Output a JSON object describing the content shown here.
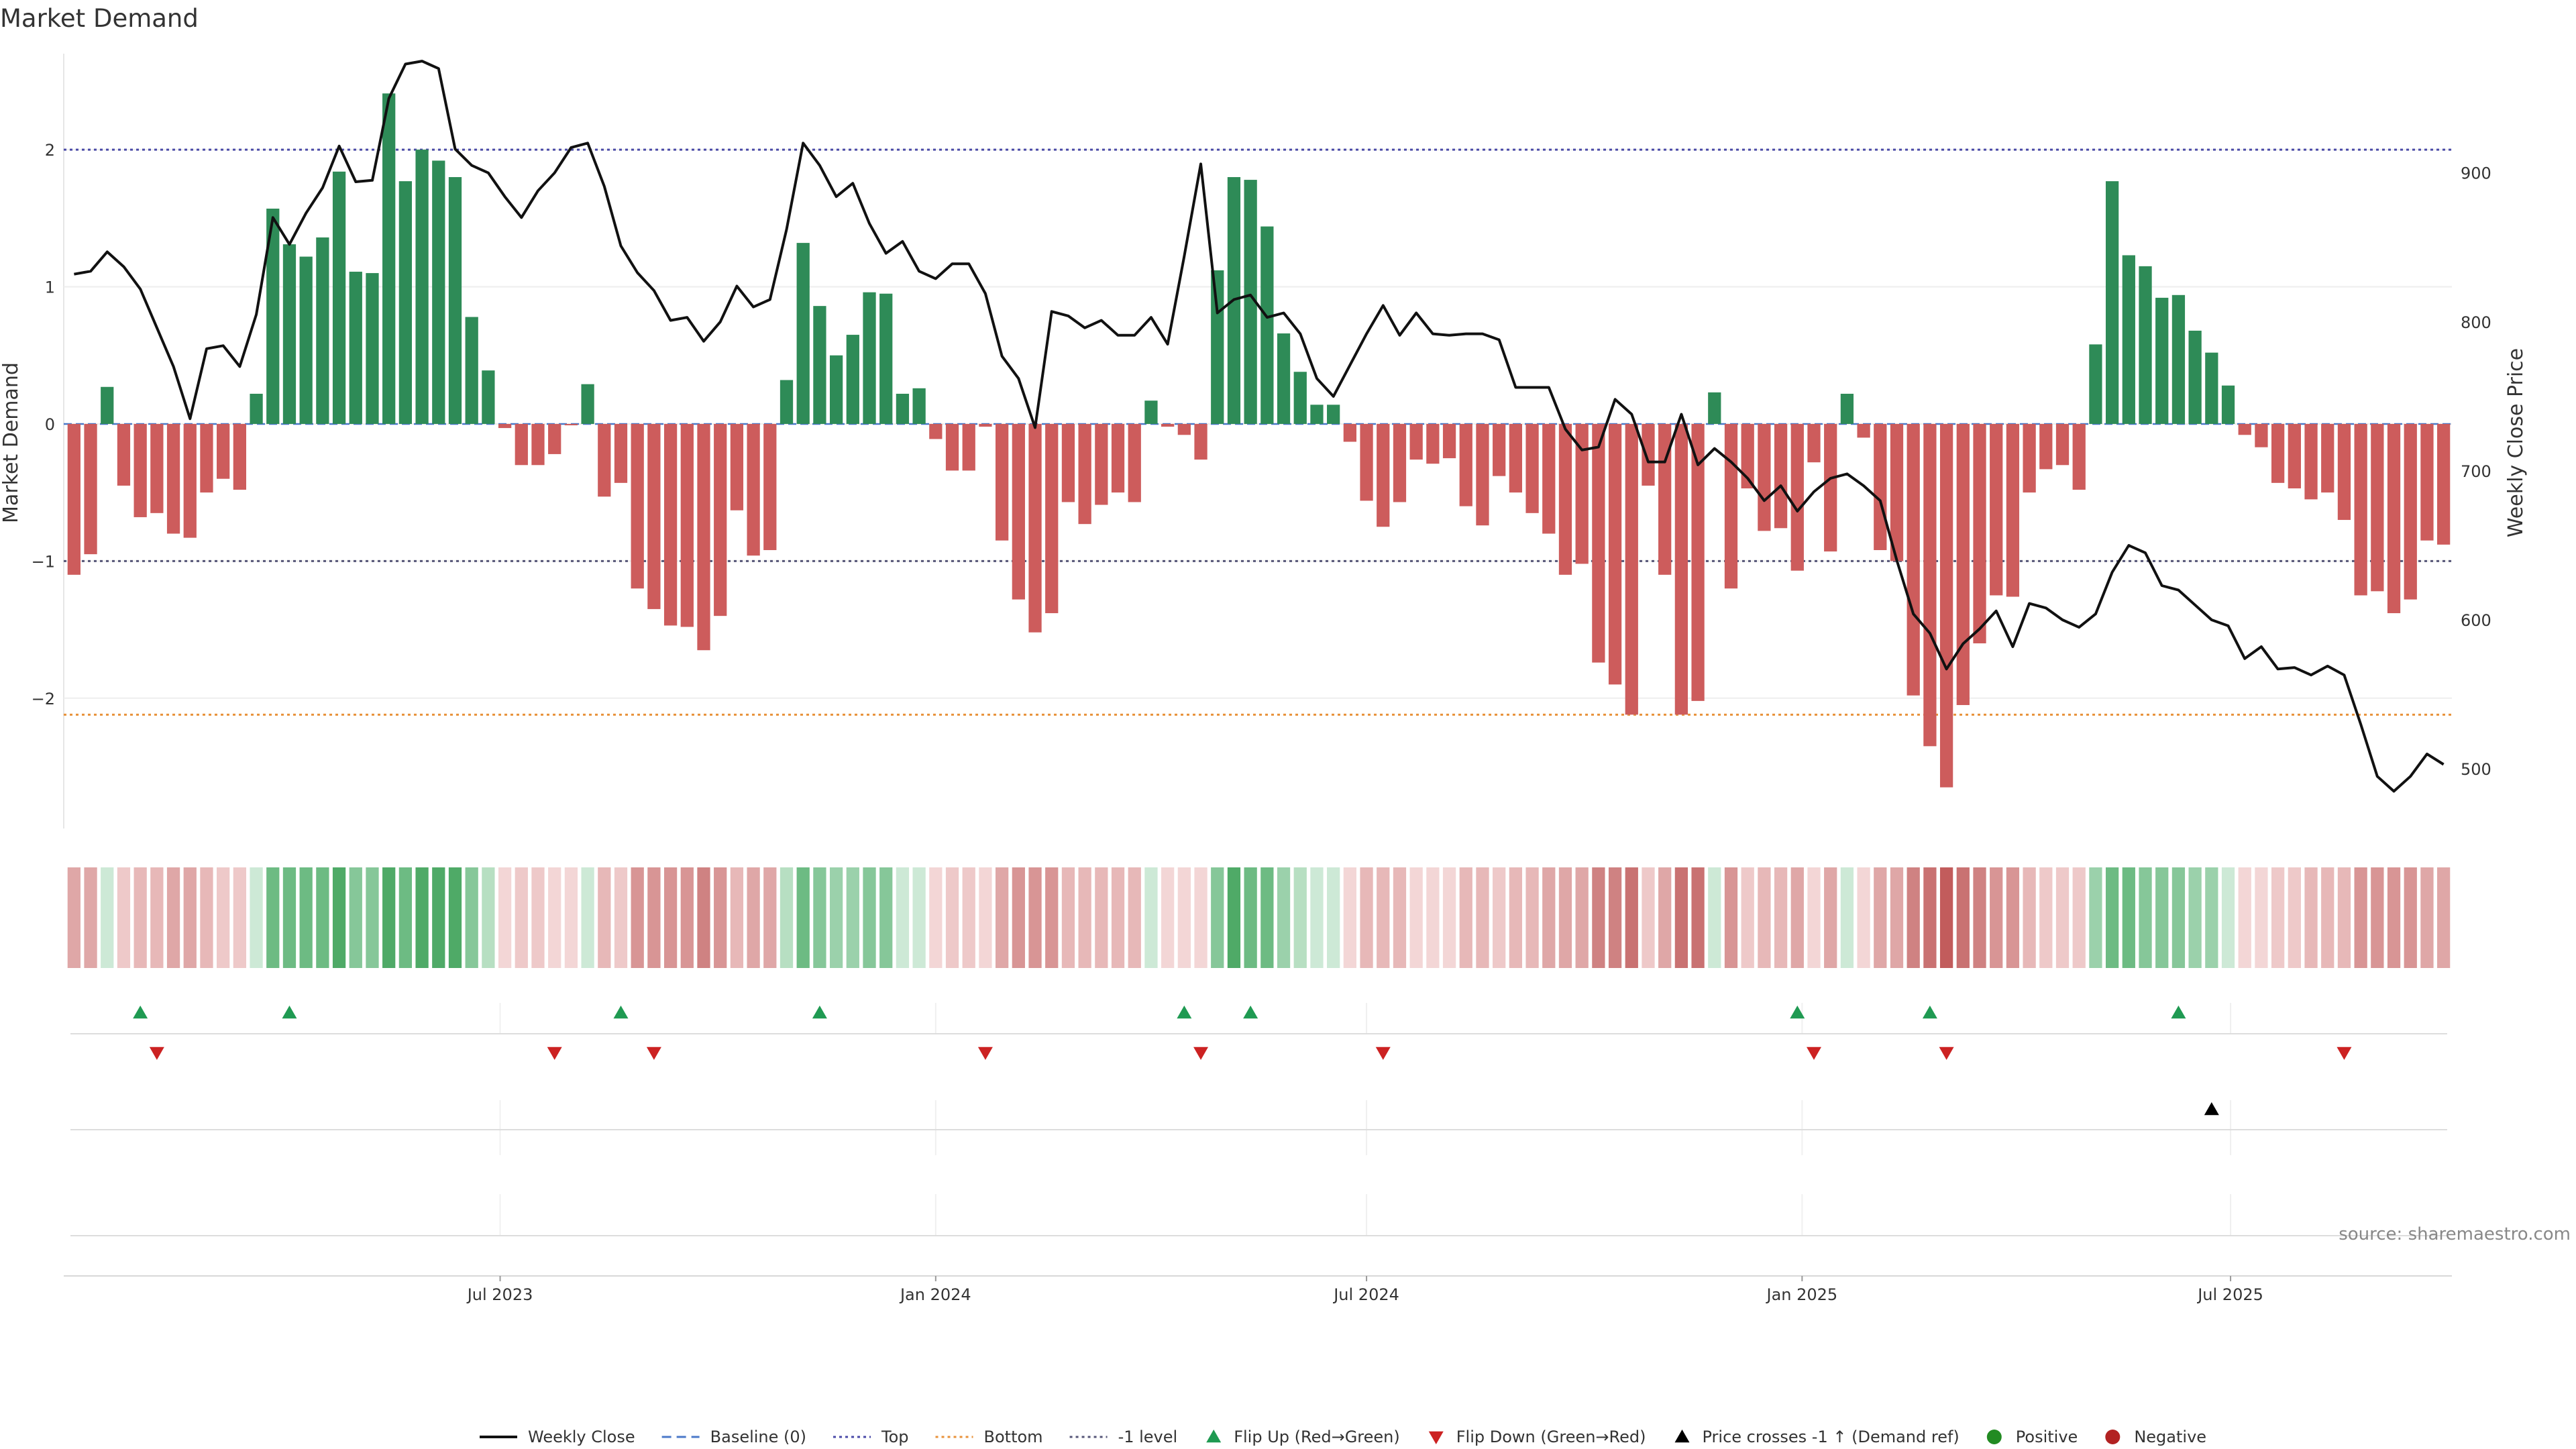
{
  "chart_data": {
    "type": "bar",
    "title": "Market Demand",
    "ylabel": "Market Demand",
    "y2label": "Weekly Close Price",
    "ylim": [
      -2.95,
      2.7
    ],
    "y2lim": [
      460,
      980
    ],
    "yticks": [
      2,
      1,
      0,
      -1,
      -2
    ],
    "ytick_labels": [
      "2",
      "1",
      "0",
      "−1",
      "−2"
    ],
    "y2ticks": [
      900,
      800,
      700,
      600,
      500
    ],
    "y2tick_labels": [
      "900",
      "800",
      "700",
      "600",
      "500"
    ],
    "x_start": "2023-01-02",
    "x_end": "2025-10-06",
    "xticks": [
      {
        "date": "2023-07-01",
        "label": "Jul 2023"
      },
      {
        "date": "2024-01-01",
        "label": "Jan 2024"
      },
      {
        "date": "2024-07-01",
        "label": "Jul 2024"
      },
      {
        "date": "2025-01-01",
        "label": "Jan 2025"
      },
      {
        "date": "2025-07-01",
        "label": "Jul 2025"
      }
    ],
    "reference_lines": [
      {
        "name": "Top",
        "value": 2,
        "color": "#4a4aa8"
      },
      {
        "name": "-1 level",
        "value": -1,
        "color": "#555577"
      },
      {
        "name": "Bottom",
        "value": -2.12,
        "color": "#e8923a"
      }
    ],
    "positive_color": "#2e8b57",
    "negative_color": "#cd5c5c",
    "line_color": "#111111",
    "demand": [
      -1.1,
      -0.95,
      0.27,
      -0.45,
      -0.68,
      -0.65,
      -0.8,
      -0.83,
      -0.5,
      -0.4,
      -0.48,
      0.22,
      1.57,
      1.31,
      1.22,
      1.36,
      1.84,
      1.11,
      1.1,
      2.41,
      1.77,
      2.0,
      1.92,
      1.8,
      0.78,
      0.39,
      -0.03,
      -0.3,
      -0.3,
      -0.22,
      -0.01,
      0.29,
      -0.53,
      -0.43,
      -1.2,
      -1.35,
      -1.47,
      -1.48,
      -1.65,
      -1.4,
      -0.63,
      -0.96,
      -0.92,
      0.32,
      1.32,
      0.86,
      0.5,
      0.65,
      0.96,
      0.95,
      0.22,
      0.26,
      -0.11,
      -0.34,
      -0.34,
      -0.02,
      -0.85,
      -1.28,
      -1.52,
      -1.38,
      -0.57,
      -0.73,
      -0.59,
      -0.5,
      -0.57,
      0.17,
      -0.02,
      -0.08,
      -0.26,
      1.12,
      1.8,
      1.78,
      1.44,
      0.66,
      0.38,
      0.14,
      0.14,
      -0.13,
      -0.56,
      -0.75,
      -0.57,
      -0.26,
      -0.29,
      -0.25,
      -0.6,
      -0.74,
      -0.38,
      -0.5,
      -0.65,
      -0.8,
      -1.1,
      -1.02,
      -1.74,
      -1.9,
      -2.12,
      -0.45,
      -1.1,
      -2.12,
      -2.02,
      0.23,
      -1.2,
      -0.47,
      -0.78,
      -0.76,
      -1.07,
      -0.28,
      -0.93,
      0.22,
      -0.1,
      -0.92,
      -1.0,
      -1.98,
      -2.35,
      -2.65,
      -2.05,
      -1.6,
      -1.25,
      -1.26,
      -0.5,
      -0.33,
      -0.3,
      -0.48,
      0.58,
      1.77,
      1.23,
      1.15,
      0.92,
      0.94,
      0.68,
      0.52,
      0.28,
      -0.08,
      -0.17,
      -0.43,
      -0.47,
      -0.55,
      -0.5,
      -0.7,
      -1.25,
      -1.22,
      -1.38,
      -1.28,
      -0.85,
      -0.88
    ],
    "close": [
      832,
      834,
      847,
      837,
      822,
      796,
      770,
      735,
      782,
      784,
      770,
      805,
      870,
      852,
      873,
      890,
      918,
      894,
      895,
      950,
      973,
      975,
      970,
      916,
      905,
      900,
      884,
      870,
      888,
      900,
      917,
      920,
      891,
      851,
      833,
      821,
      801,
      803,
      787,
      800,
      824,
      810,
      815,
      862,
      920,
      905,
      884,
      893,
      866,
      846,
      854,
      834,
      829,
      839,
      839,
      819,
      777,
      762,
      729,
      807,
      804,
      796,
      801,
      791,
      791,
      803,
      785,
      844,
      906,
      806,
      815,
      818,
      803,
      806,
      792,
      762,
      750,
      771,
      792,
      811,
      791,
      806,
      792,
      791,
      792,
      792,
      788,
      756,
      756,
      756,
      728,
      714,
      716,
      748,
      738,
      706,
      706,
      738,
      704,
      715,
      706,
      695,
      680,
      690,
      673,
      686,
      695,
      698,
      690,
      680,
      640,
      604,
      591,
      567,
      584,
      594,
      606,
      582,
      611,
      608,
      600,
      595,
      604,
      632,
      650,
      645,
      623,
      620,
      610,
      600,
      596,
      574,
      582,
      567,
      568,
      563,
      569,
      563,
      530,
      495,
      485,
      495,
      510,
      503
    ],
    "flips_up": [
      "2023-01-30",
      "2023-04-03",
      "2023-08-21",
      "2023-11-13",
      "2024-04-15",
      "2024-05-13",
      "2024-12-30",
      "2025-02-24",
      "2025-06-09"
    ],
    "flips_down": [
      "2023-02-06",
      "2023-07-24",
      "2023-09-04",
      "2024-01-22",
      "2024-04-22",
      "2024-07-08",
      "2025-01-06",
      "2025-03-03",
      "2025-08-18"
    ],
    "price_cross": [
      "2025-06-23"
    ],
    "legend": [
      {
        "label": "Weekly Close",
        "kind": "line",
        "color": "#111111"
      },
      {
        "label": "Baseline (0)",
        "kind": "dashed",
        "color": "#4b79c9"
      },
      {
        "label": "Top",
        "kind": "dotted",
        "color": "#4a4aa8"
      },
      {
        "label": "Bottom",
        "kind": "dotted",
        "color": "#e8923a"
      },
      {
        "label": "-1 level",
        "kind": "dotted",
        "color": "#555577"
      },
      {
        "label": "Flip Up (Red→Green)",
        "kind": "tri-up",
        "color": "#1f9a52"
      },
      {
        "label": "Flip Down (Green→Red)",
        "kind": "tri-down",
        "color": "#cc2222"
      },
      {
        "label": "Price crosses -1 ↑ (Demand ref)",
        "kind": "tri-up",
        "color": "#000000"
      },
      {
        "label": "Positive",
        "kind": "dot",
        "color": "#228b22"
      },
      {
        "label": "Negative",
        "kind": "dot",
        "color": "#b22222"
      }
    ]
  },
  "source": "source: sharemaestro.com"
}
